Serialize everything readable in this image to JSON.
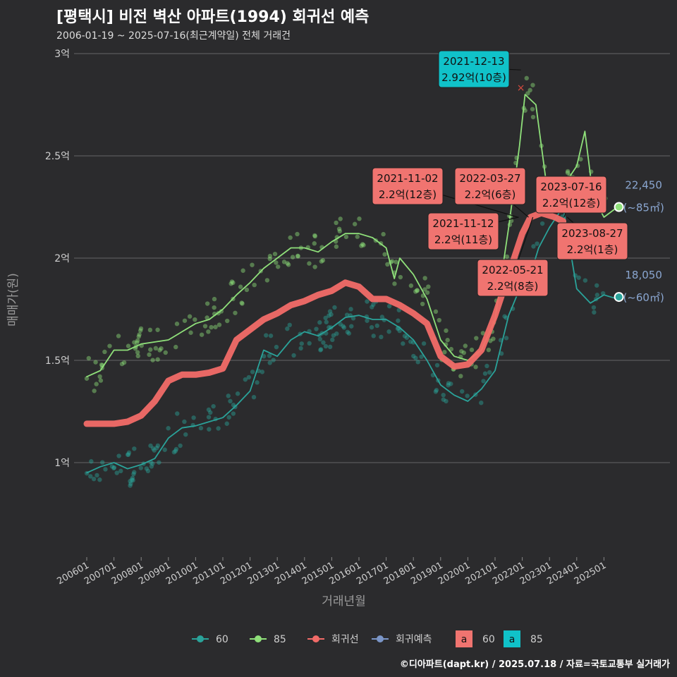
{
  "title": "[평택시] 비전 벽산 아파트(1994) 회귀선 예측",
  "subtitle": "2006-01-19 ~ 2025-07-16(최근계약일) 전체 거래건",
  "footer": "©디아파트(dapt.kr) / 2025.07.18 / 자료=국토교통부 실거래가",
  "colors": {
    "s60": "#2aa39a",
    "s85": "#8fe07a",
    "reg": "#f26b68",
    "pred": "#7b96c8",
    "grid": "#666666",
    "label_fill": "#f07470",
    "label_top": "#10c2c9"
  },
  "chart_data": {
    "type": "line",
    "xlabel": "거래년월",
    "ylabel": "매매가(원)",
    "ylim": [
      0.5,
      3.0
    ],
    "x_ticks": [
      "200601",
      "200701",
      "200801",
      "200901",
      "201001",
      "201101",
      "201201",
      "201301",
      "201401",
      "201501",
      "201601",
      "201701",
      "201801",
      "201901",
      "202001",
      "202101",
      "202201",
      "202301",
      "202401",
      "202501"
    ],
    "y_ticks": [
      {
        "v": 1.0,
        "label": "1억"
      },
      {
        "v": 1.5,
        "label": "1.5억"
      },
      {
        "v": 2.0,
        "label": "2억"
      },
      {
        "v": 2.5,
        "label": "2.5억"
      },
      {
        "v": 3.0,
        "label": "3억"
      }
    ],
    "grid": true,
    "legend": {
      "items": [
        {
          "key": "s60",
          "label": "60"
        },
        {
          "key": "s85",
          "label": "85"
        },
        {
          "key": "reg",
          "label": "회귀선"
        },
        {
          "key": "pred",
          "label": "회귀예측"
        }
      ],
      "label_items": [
        {
          "key": "label_fill",
          "glyph": "a",
          "label": "60"
        },
        {
          "key": "label_top",
          "glyph": "a",
          "label": "85"
        }
      ]
    },
    "series": [
      {
        "name": "60",
        "key": "s60",
        "points": [
          [
            2006.0,
            0.95
          ],
          [
            2006.5,
            0.98
          ],
          [
            2007.0,
            1.0
          ],
          [
            2007.5,
            0.97
          ],
          [
            2008.0,
            0.99
          ],
          [
            2008.5,
            1.02
          ],
          [
            2009.0,
            1.12
          ],
          [
            2009.5,
            1.17
          ],
          [
            2010.0,
            1.18
          ],
          [
            2010.5,
            1.2
          ],
          [
            2011.0,
            1.22
          ],
          [
            2011.5,
            1.28
          ],
          [
            2012.0,
            1.35
          ],
          [
            2012.5,
            1.55
          ],
          [
            2013.0,
            1.52
          ],
          [
            2013.5,
            1.6
          ],
          [
            2014.0,
            1.64
          ],
          [
            2014.5,
            1.62
          ],
          [
            2015.0,
            1.66
          ],
          [
            2015.5,
            1.71
          ],
          [
            2016.0,
            1.72
          ],
          [
            2016.5,
            1.7
          ],
          [
            2017.0,
            1.7
          ],
          [
            2017.5,
            1.66
          ],
          [
            2018.0,
            1.6
          ],
          [
            2018.5,
            1.5
          ],
          [
            2019.0,
            1.38
          ],
          [
            2019.5,
            1.33
          ],
          [
            2020.0,
            1.3
          ],
          [
            2020.5,
            1.36
          ],
          [
            2021.0,
            1.45
          ],
          [
            2021.5,
            1.72
          ],
          [
            2022.0,
            1.88
          ],
          [
            2022.3,
            1.92
          ],
          [
            2022.6,
            2.05
          ],
          [
            2023.0,
            2.15
          ],
          [
            2023.5,
            2.25
          ],
          [
            2024.0,
            1.85
          ],
          [
            2024.5,
            1.78
          ],
          [
            2025.0,
            1.82
          ],
          [
            2025.5,
            1.8
          ]
        ]
      },
      {
        "name": "85",
        "key": "s85",
        "points": [
          [
            2006.0,
            1.42
          ],
          [
            2006.5,
            1.45
          ],
          [
            2007.0,
            1.55
          ],
          [
            2007.5,
            1.55
          ],
          [
            2008.0,
            1.58
          ],
          [
            2008.5,
            1.59
          ],
          [
            2009.0,
            1.6
          ],
          [
            2009.5,
            1.64
          ],
          [
            2010.0,
            1.68
          ],
          [
            2010.5,
            1.7
          ],
          [
            2011.0,
            1.75
          ],
          [
            2011.5,
            1.82
          ],
          [
            2012.0,
            1.88
          ],
          [
            2012.5,
            1.95
          ],
          [
            2013.0,
            2.0
          ],
          [
            2013.5,
            2.05
          ],
          [
            2014.0,
            2.05
          ],
          [
            2014.5,
            2.03
          ],
          [
            2015.0,
            2.08
          ],
          [
            2015.5,
            2.12
          ],
          [
            2016.0,
            2.12
          ],
          [
            2016.5,
            2.1
          ],
          [
            2017.0,
            2.05
          ],
          [
            2017.3,
            1.9
          ],
          [
            2017.5,
            2.0
          ],
          [
            2018.0,
            1.92
          ],
          [
            2018.5,
            1.8
          ],
          [
            2019.0,
            1.6
          ],
          [
            2019.5,
            1.52
          ],
          [
            2020.0,
            1.5
          ],
          [
            2020.5,
            1.55
          ],
          [
            2021.0,
            1.7
          ],
          [
            2021.5,
            2.15
          ],
          [
            2021.9,
            2.55
          ],
          [
            2022.1,
            2.8
          ],
          [
            2022.5,
            2.75
          ],
          [
            2023.0,
            2.25
          ],
          [
            2023.5,
            2.35
          ],
          [
            2024.0,
            2.45
          ],
          [
            2024.3,
            2.62
          ],
          [
            2024.6,
            2.3
          ],
          [
            2025.0,
            2.2
          ],
          [
            2025.5,
            2.25
          ]
        ]
      },
      {
        "name": "회귀선",
        "key": "reg",
        "points": [
          [
            2006.0,
            1.19
          ],
          [
            2007.0,
            1.19
          ],
          [
            2007.5,
            1.2
          ],
          [
            2008.0,
            1.23
          ],
          [
            2008.5,
            1.3
          ],
          [
            2009.0,
            1.4
          ],
          [
            2009.5,
            1.43
          ],
          [
            2010.0,
            1.43
          ],
          [
            2010.5,
            1.44
          ],
          [
            2011.0,
            1.46
          ],
          [
            2011.5,
            1.6
          ],
          [
            2012.0,
            1.65
          ],
          [
            2012.5,
            1.7
          ],
          [
            2013.0,
            1.73
          ],
          [
            2013.5,
            1.77
          ],
          [
            2014.0,
            1.79
          ],
          [
            2014.5,
            1.82
          ],
          [
            2015.0,
            1.84
          ],
          [
            2015.5,
            1.88
          ],
          [
            2016.0,
            1.86
          ],
          [
            2016.5,
            1.8
          ],
          [
            2017.0,
            1.8
          ],
          [
            2017.5,
            1.77
          ],
          [
            2018.0,
            1.73
          ],
          [
            2018.5,
            1.68
          ],
          [
            2019.0,
            1.52
          ],
          [
            2019.5,
            1.47
          ],
          [
            2020.0,
            1.48
          ],
          [
            2020.5,
            1.55
          ],
          [
            2021.0,
            1.72
          ],
          [
            2021.5,
            1.92
          ],
          [
            2022.0,
            2.12
          ],
          [
            2022.3,
            2.2
          ],
          [
            2022.7,
            2.22
          ],
          [
            2023.2,
            2.2
          ],
          [
            2023.5,
            2.18
          ]
        ]
      }
    ],
    "labels": [
      {
        "date": "2021-12-13",
        "text": "2.92억(10층)",
        "x": 2021.95,
        "y": 2.92,
        "style": "top"
      },
      {
        "date": "2021-11-02",
        "text": "2.2억(12층)",
        "x": 2021.84,
        "y": 2.2,
        "style": "fill"
      },
      {
        "date": "2022-03-27",
        "text": "2.2억(6층)",
        "x": 2022.23,
        "y": 2.2,
        "style": "fill"
      },
      {
        "date": "2023-07-16",
        "text": "2.2억(12층)",
        "x": 2023.54,
        "y": 2.2,
        "style": "fill"
      },
      {
        "date": "2021-11-12",
        "text": "2.2억(11층)",
        "x": 2021.87,
        "y": 2.2,
        "style": "fill"
      },
      {
        "date": "2023-08-27",
        "text": "2.2억(1층)",
        "x": 2023.65,
        "y": 2.2,
        "style": "fill"
      },
      {
        "date": "2022-05-21",
        "text": "2.2억(8층)",
        "x": 2022.39,
        "y": 2.2,
        "style": "fill"
      }
    ],
    "end_labels": [
      {
        "value": "22,450",
        "unit": "(~85㎡)",
        "x": 2025.55,
        "y": 2.25,
        "key": "s85"
      },
      {
        "value": "18,050",
        "unit": "(~60㎡)",
        "x": 2025.55,
        "y": 1.81,
        "key": "s60"
      }
    ]
  }
}
